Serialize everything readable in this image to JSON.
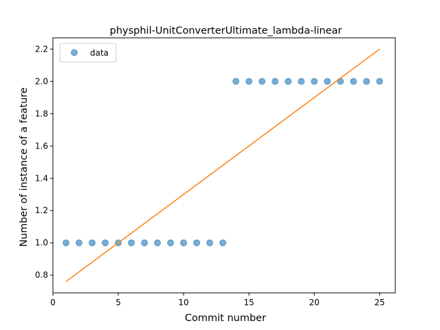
{
  "chart_data": {
    "type": "scatter",
    "title": "physphil-UnitConverterUltimate_lambda-linear",
    "xlabel": "Commit number",
    "ylabel": "Number of instance of a feature",
    "xlim": [
      0,
      26.2
    ],
    "ylim": [
      0.69,
      2.27
    ],
    "x_ticks": [
      0,
      5,
      10,
      15,
      20,
      25
    ],
    "y_ticks": [
      0.8,
      1.0,
      1.2,
      1.4,
      1.6,
      1.8,
      2.0,
      2.2
    ],
    "x_tick_labels": [
      "0",
      "5",
      "10",
      "15",
      "20",
      "25"
    ],
    "y_tick_labels": [
      "0.8",
      "1.0",
      "1.2",
      "1.4",
      "1.6",
      "1.8",
      "2.0",
      "2.2"
    ],
    "legend": {
      "placement": "upper-left",
      "entries": [
        "data"
      ]
    },
    "grid": false,
    "series": [
      {
        "name": "data",
        "kind": "scatter",
        "color": "#1f77b4",
        "x": [
          1,
          2,
          3,
          4,
          5,
          6,
          7,
          8,
          9,
          10,
          11,
          12,
          13,
          14,
          15,
          16,
          17,
          18,
          19,
          20,
          21,
          22,
          23,
          24,
          25
        ],
        "y": [
          1,
          1,
          1,
          1,
          1,
          1,
          1,
          1,
          1,
          1,
          1,
          1,
          1,
          2,
          2,
          2,
          2,
          2,
          2,
          2,
          2,
          2,
          2,
          2,
          2
        ]
      },
      {
        "kind": "line",
        "color": "#ff7f0e",
        "x": [
          1,
          25
        ],
        "y": [
          0.76,
          2.2
        ]
      }
    ]
  }
}
